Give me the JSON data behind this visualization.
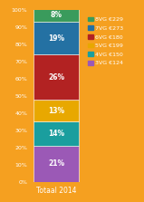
{
  "categories": [
    "Totaal 2014"
  ],
  "segments": [
    {
      "label": "3VG €124",
      "value": 21,
      "color": "#9B59B6"
    },
    {
      "label": "4VG €150",
      "value": 14,
      "color": "#1A9E9E"
    },
    {
      "label": "5VG €199",
      "value": 13,
      "color": "#E8A800"
    },
    {
      "label": "6VG €180",
      "value": 26,
      "color": "#B22222"
    },
    {
      "label": "7VG €273",
      "value": 19,
      "color": "#2471A3"
    },
    {
      "label": "8VG €229",
      "value": 8,
      "color": "#3A9B5C"
    }
  ],
  "background_color": "#F5A020",
  "bar_width": 0.55,
  "ylabel_fontsize": 4.5,
  "xlabel_fontsize": 5.5,
  "legend_fontsize": 4.5,
  "label_fontsize": 5.5,
  "ylim": [
    0,
    100
  ],
  "yticks": [
    0,
    10,
    20,
    30,
    40,
    50,
    60,
    70,
    80,
    90,
    100
  ]
}
